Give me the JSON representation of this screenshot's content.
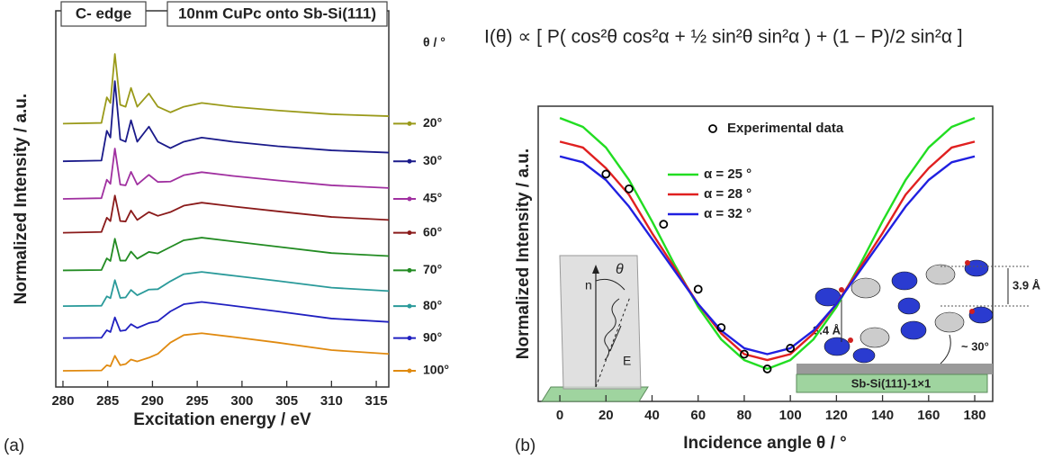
{
  "chart_data": [
    {
      "type": "line",
      "panel_label": "(a)",
      "title_boxes": [
        "C- edge",
        "10nm CuPc onto Sb-Si(111)"
      ],
      "x_label": "Excitation energy / eV",
      "y_label": "Normalized Intensity / a.u.",
      "legend_title": "θ / °",
      "legend": "right",
      "xlim": [
        279.2,
        316.4
      ],
      "xticks": [
        280,
        285,
        290,
        295,
        300,
        305,
        310,
        315
      ],
      "ylim": [
        0,
        10
      ],
      "x": [
        280,
        284.3,
        284.9,
        285.3,
        285.8,
        286.4,
        287,
        287.6,
        288.3,
        289.6,
        290.6,
        292,
        293.5,
        295.5,
        299,
        304,
        310,
        316.4
      ],
      "series": [
        {
          "name": "20°",
          "color": "#9a9a1a",
          "values": [
            7.0,
            7.02,
            7.7,
            7.55,
            8.85,
            7.5,
            7.45,
            7.95,
            7.45,
            7.8,
            7.45,
            7.3,
            7.45,
            7.55,
            7.45,
            7.35,
            7.25,
            7.2
          ]
        },
        {
          "name": "30°",
          "color": "#1a1a8a",
          "values": [
            6.0,
            6.02,
            6.81,
            6.63,
            8.13,
            6.58,
            6.52,
            7.09,
            6.52,
            6.92,
            6.52,
            6.35,
            6.52,
            6.63,
            6.52,
            6.4,
            6.29,
            6.23
          ]
        },
        {
          "name": "45°",
          "color": "#a030a0",
          "values": [
            5.0,
            5.02,
            5.51,
            5.4,
            6.34,
            5.38,
            5.36,
            5.72,
            5.38,
            5.64,
            5.45,
            5.46,
            5.63,
            5.71,
            5.61,
            5.49,
            5.36,
            5.29
          ]
        },
        {
          "name": "60°",
          "color": "#8a1a1a",
          "values": [
            4.1,
            4.12,
            4.5,
            4.41,
            5.09,
            4.41,
            4.4,
            4.69,
            4.44,
            4.65,
            4.55,
            4.65,
            4.82,
            4.9,
            4.8,
            4.67,
            4.52,
            4.44
          ]
        },
        {
          "name": "70°",
          "color": "#228b22",
          "values": [
            3.1,
            3.11,
            3.42,
            3.35,
            3.94,
            3.36,
            3.36,
            3.6,
            3.41,
            3.59,
            3.55,
            3.72,
            3.9,
            3.97,
            3.87,
            3.73,
            3.56,
            3.48
          ]
        },
        {
          "name": "80°",
          "color": "#2a9a9a",
          "values": [
            2.15,
            2.16,
            2.41,
            2.36,
            2.84,
            2.37,
            2.38,
            2.58,
            2.44,
            2.59,
            2.6,
            2.81,
            3.0,
            3.06,
            2.96,
            2.82,
            2.64,
            2.55
          ]
        },
        {
          "name": "90°",
          "color": "#2020c0",
          "values": [
            1.3,
            1.31,
            1.51,
            1.46,
            1.85,
            1.49,
            1.51,
            1.67,
            1.57,
            1.7,
            1.75,
            2.01,
            2.2,
            2.26,
            2.16,
            2.01,
            1.82,
            1.73
          ]
        },
        {
          "name": "100°",
          "color": "#e08a10",
          "values": [
            0.43,
            0.44,
            0.58,
            0.55,
            0.83,
            0.58,
            0.61,
            0.73,
            0.68,
            0.78,
            0.88,
            1.18,
            1.38,
            1.43,
            1.33,
            1.18,
            0.98,
            0.88
          ]
        }
      ]
    },
    {
      "type": "line",
      "panel_label": "(b)",
      "formula": "I(θ) ∝ [ P( cos²θ cos²α + ½ sin²θ sin²α ) + (1 − P)/2 sin²α ]",
      "x_label": "Incidence angle θ / °",
      "y_label": "Normalized Intensity / a.u.",
      "legend": "upper-center",
      "xlim": [
        -9.4,
        187.8
      ],
      "xticks": [
        0,
        20,
        40,
        60,
        80,
        100,
        120,
        140,
        160,
        180
      ],
      "ylim": [
        0,
        1
      ],
      "x": [
        0,
        10,
        20,
        30,
        40,
        50,
        60,
        70,
        80,
        90,
        100,
        110,
        120,
        130,
        140,
        150,
        160,
        170,
        180
      ],
      "series": [
        {
          "name": "α = 25 °",
          "color": "#22dd22",
          "values": [
            0.96,
            0.93,
            0.86,
            0.75,
            0.61,
            0.46,
            0.32,
            0.21,
            0.14,
            0.11,
            0.14,
            0.21,
            0.32,
            0.46,
            0.61,
            0.75,
            0.86,
            0.93,
            0.96
          ]
        },
        {
          "name": "α = 28 °",
          "color": "#e02020",
          "values": [
            0.88,
            0.86,
            0.79,
            0.7,
            0.57,
            0.45,
            0.33,
            0.23,
            0.16,
            0.14,
            0.16,
            0.23,
            0.33,
            0.45,
            0.57,
            0.7,
            0.79,
            0.86,
            0.88
          ]
        },
        {
          "name": "α = 32 °",
          "color": "#2020e0",
          "values": [
            0.83,
            0.81,
            0.75,
            0.66,
            0.55,
            0.44,
            0.33,
            0.24,
            0.18,
            0.16,
            0.18,
            0.24,
            0.33,
            0.44,
            0.55,
            0.66,
            0.75,
            0.81,
            0.83
          ]
        },
        {
          "name": "Experimental data",
          "color": "#000000",
          "marker": "circle",
          "x": [
            20,
            30,
            45,
            60,
            70,
            80,
            90,
            100
          ],
          "values": [
            0.77,
            0.72,
            0.6,
            0.38,
            0.25,
            0.16,
            0.11,
            0.18
          ]
        }
      ],
      "annotations": [
        "n",
        "θ",
        "E",
        "3.9 Å",
        "3.4 Å",
        "~ 30°",
        "Sb-Si(111)-1×1"
      ]
    }
  ]
}
